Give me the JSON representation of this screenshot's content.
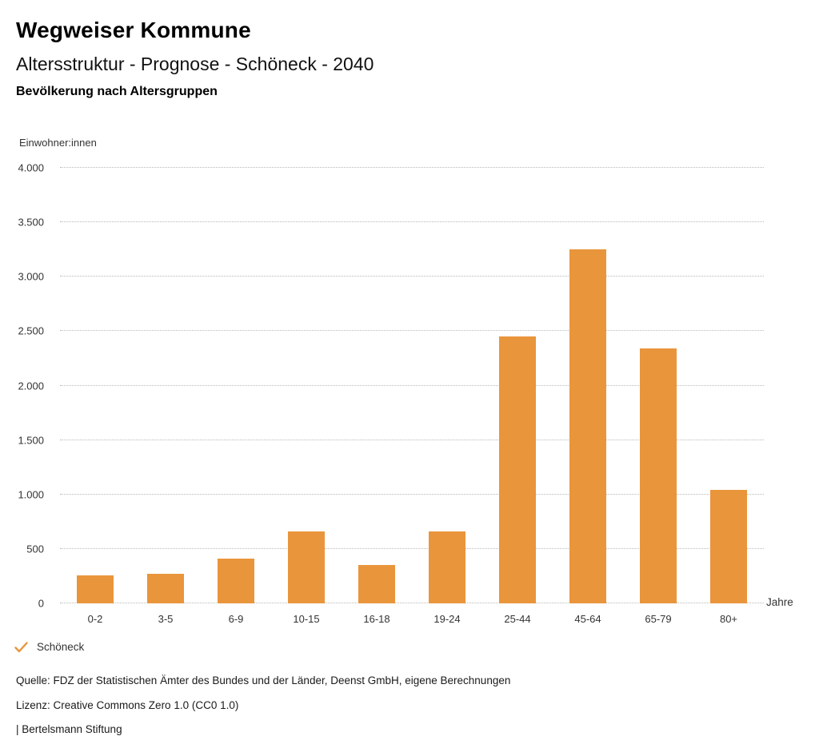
{
  "header": {
    "title": "Wegweiser Kommune",
    "subtitle": "Altersstruktur - Prognose - Schöneck - 2040",
    "section_title": "Bevölkerung nach Altersgruppen"
  },
  "chart_data": {
    "type": "bar",
    "title": "Bevölkerung nach Altersgruppen",
    "categories": [
      "0-2",
      "3-5",
      "6-9",
      "10-15",
      "16-18",
      "19-24",
      "25-44",
      "45-64",
      "65-79",
      "80+"
    ],
    "series": [
      {
        "name": "Schöneck",
        "values": [
          260,
          275,
          410,
          660,
          350,
          660,
          2450,
          3250,
          2340,
          1040
        ]
      }
    ],
    "xlabel": "Jahre",
    "ylabel": "Einwohner:innen",
    "ylim": [
      0,
      4000
    ],
    "ytick_interval": 500,
    "ytick_labels": [
      "0",
      "500",
      "1.000",
      "1.500",
      "2.000",
      "2.500",
      "3.000",
      "3.500",
      "4.000"
    ],
    "grid": true,
    "gridline_style": "dotted",
    "bar_color": "#E9953C",
    "legend_position": "bottom-left"
  },
  "legend": {
    "icon": "check-icon",
    "label": "Schöneck",
    "color": "#E9953C"
  },
  "footer": {
    "source": "Quelle: FDZ der Statistischen Ämter des Bundes und der Länder, Deenst GmbH, eigene Berechnungen",
    "license": "Lizenz: Creative Commons Zero 1.0 (CC0 1.0)",
    "attribution": "| Bertelsmann Stiftung"
  }
}
